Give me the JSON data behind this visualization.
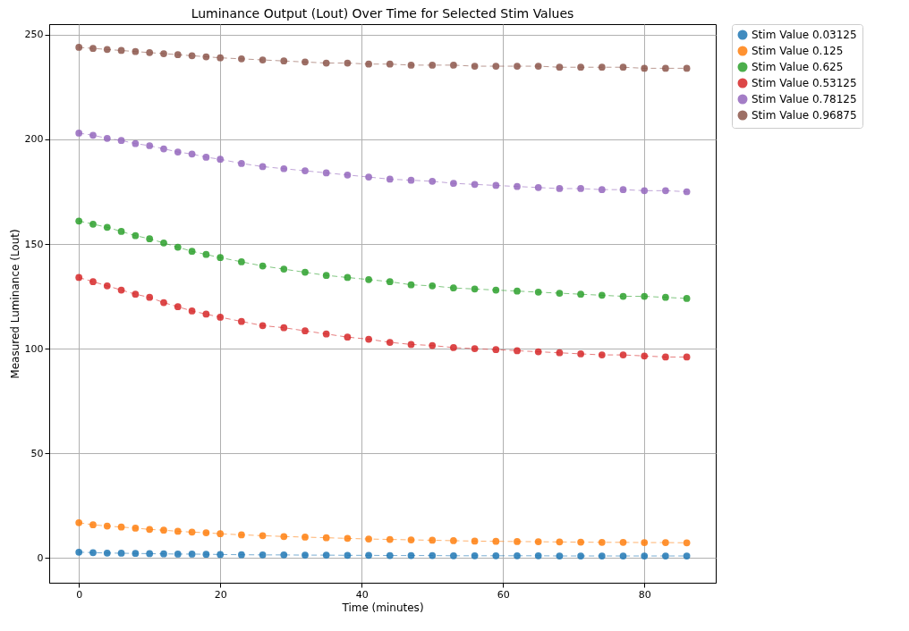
{
  "chart_data": {
    "type": "line",
    "title": "Luminance Output (Lout) Over Time for Selected Stim Values",
    "xlabel": "Time (minutes)",
    "ylabel": "Measured Luminance (Lout)",
    "x": [
      0,
      2,
      4,
      6,
      8,
      10,
      12,
      14,
      16,
      18,
      20,
      23,
      26,
      29,
      32,
      35,
      38,
      41,
      44,
      47,
      50,
      53,
      56,
      59,
      62,
      65,
      68,
      71,
      74,
      77,
      80,
      83,
      86
    ],
    "xlim": [
      -4.2,
      90.1
    ],
    "xticks": [
      0,
      20,
      40,
      60,
      80
    ],
    "ylim": [
      -11.9,
      255.1
    ],
    "yticks": [
      0,
      50,
      100,
      150,
      200,
      250
    ],
    "grid": true,
    "legend": "top right",
    "marker": "circle",
    "line_style": "dashed",
    "series": [
      {
        "name": "Stim Value 0.03125",
        "color": "#1f77b4",
        "values": [
          2.7,
          2.5,
          2.3,
          2.2,
          2.1,
          2.0,
          1.9,
          1.8,
          1.8,
          1.7,
          1.6,
          1.5,
          1.4,
          1.4,
          1.3,
          1.3,
          1.2,
          1.2,
          1.1,
          1.1,
          1.1,
          1.0,
          1.0,
          1.0,
          1.0,
          1.0,
          0.9,
          0.9,
          0.9,
          0.9,
          0.9,
          0.9,
          0.9
        ]
      },
      {
        "name": "Stim Value 0.125",
        "color": "#ff7f0e",
        "values": [
          16.8,
          15.8,
          15.2,
          14.7,
          14.2,
          13.6,
          13.2,
          12.7,
          12.3,
          12.0,
          11.5,
          11.0,
          10.6,
          10.2,
          9.9,
          9.6,
          9.3,
          9.0,
          8.8,
          8.6,
          8.4,
          8.2,
          8.0,
          7.9,
          7.8,
          7.7,
          7.6,
          7.5,
          7.4,
          7.4,
          7.3,
          7.3,
          7.2
        ]
      },
      {
        "name": "Stim Value 0.625",
        "color": "#2ca02c",
        "values": [
          161,
          159.5,
          158,
          156,
          154,
          152.5,
          150.5,
          148.5,
          146.5,
          145,
          143.5,
          141.5,
          139.5,
          138,
          136.5,
          135,
          134,
          133,
          132,
          130.5,
          130,
          129,
          128.5,
          128,
          127.5,
          127,
          126.5,
          126,
          125.5,
          125,
          125,
          124.5,
          124
        ]
      },
      {
        "name": "Stim Value 0.53125",
        "color": "#d62728",
        "values": [
          134,
          132,
          130,
          128,
          126,
          124.5,
          122,
          120,
          118,
          116.5,
          115,
          113,
          111,
          110,
          108.5,
          107,
          105.5,
          104.5,
          103,
          102,
          101.5,
          100.5,
          100,
          99.5,
          99,
          98.5,
          98,
          97.5,
          97,
          97,
          96.5,
          96,
          96
        ]
      },
      {
        "name": "Stim Value 0.78125",
        "color": "#9467bd",
        "values": [
          203,
          202,
          200.5,
          199.5,
          198,
          197,
          195.5,
          194,
          193,
          191.5,
          190.5,
          188.5,
          187,
          186,
          185,
          184,
          183,
          182,
          181,
          180.5,
          180,
          179,
          178.5,
          178,
          177.5,
          177,
          176.5,
          176.5,
          176,
          176,
          175.5,
          175.5,
          175
        ]
      },
      {
        "name": "Stim Value 0.96875",
        "color": "#8c564b",
        "values": [
          244,
          243.5,
          243,
          242.5,
          242,
          241.5,
          241,
          240.5,
          240,
          239.5,
          239,
          238.5,
          238,
          237.5,
          237,
          236.5,
          236.5,
          236,
          236,
          235.5,
          235.5,
          235.5,
          235,
          235,
          235,
          235,
          234.5,
          234.5,
          234.5,
          234.5,
          234,
          234,
          234
        ]
      }
    ]
  }
}
